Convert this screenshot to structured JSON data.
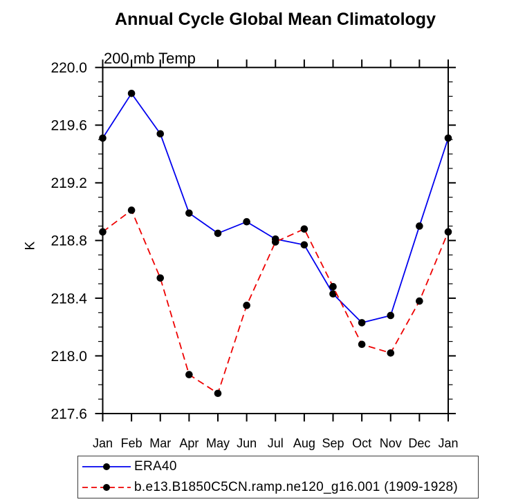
{
  "title": "Annual Cycle Global Mean Climatology",
  "subtitle": "200 mb Temp",
  "chart_data": {
    "type": "line",
    "x_categories": [
      "Jan",
      "Feb",
      "Mar",
      "Apr",
      "May",
      "Jun",
      "Jul",
      "Aug",
      "Sep",
      "Oct",
      "Nov",
      "Dec",
      "Jan"
    ],
    "ylabel": "K",
    "ylim": [
      217.6,
      220.0
    ],
    "y_major_tick_labels": [
      "220.0",
      "219.6",
      "219.2",
      "218.8",
      "218.4",
      "218.0",
      "217.6"
    ],
    "y_minor_step": 0.1,
    "grid": false,
    "legend_position": "bottom-left",
    "series": [
      {
        "name": "ERA40",
        "line_color": "#0000ee",
        "line_style": "solid",
        "marker": "filled-circle",
        "marker_color": "#000000",
        "values": [
          219.51,
          219.82,
          219.54,
          218.99,
          218.85,
          218.93,
          218.81,
          218.77,
          218.43,
          218.23,
          218.28,
          218.9,
          219.51
        ]
      },
      {
        "name": "b.e13.B1850C5CN.ramp.ne120_g16.001 (1909-1928)",
        "line_color": "#ee0000",
        "line_style": "dashed",
        "marker": "filled-circle",
        "marker_color": "#000000",
        "values": [
          218.86,
          219.01,
          218.54,
          217.87,
          217.74,
          218.35,
          218.79,
          218.88,
          218.48,
          218.08,
          218.02,
          218.38,
          218.86
        ]
      }
    ]
  }
}
